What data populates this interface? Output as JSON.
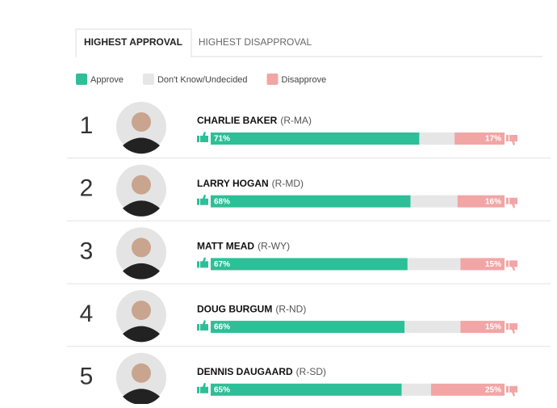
{
  "tabs": [
    "HIGHEST APPROVAL",
    "HIGHEST DISAPPROVAL"
  ],
  "chart_data": {
    "type": "stacked-bar",
    "ranks": [
      1,
      2,
      3,
      4,
      5
    ],
    "categories": [
      "CHARLIE BAKER",
      "LARRY HOGAN",
      "MATT MEAD",
      "DOUG BURGUM",
      "DENNIS DAUGAARD"
    ],
    "parties": [
      "(R-MA)",
      "(R-MD)",
      "(R-WY)",
      "(R-ND)",
      "(R-SD)"
    ],
    "xlim": [
      0,
      100
    ],
    "series": [
      {
        "name": "Approve",
        "color": "#2dbf97",
        "values": [
          71,
          68,
          67,
          66,
          65
        ],
        "value_labels": [
          "71%",
          "68%",
          "67%",
          "66%",
          "65%"
        ]
      },
      {
        "name": "Don't Know/Undecided",
        "color": "#e6e6e6",
        "values": [
          12,
          16,
          18,
          19,
          10
        ]
      },
      {
        "name": "Disapprove",
        "color": "#f2a5a5",
        "values": [
          17,
          16,
          15,
          15,
          25
        ],
        "value_labels": [
          "17%",
          "16%",
          "15%",
          "15%",
          "25%"
        ]
      }
    ]
  }
}
